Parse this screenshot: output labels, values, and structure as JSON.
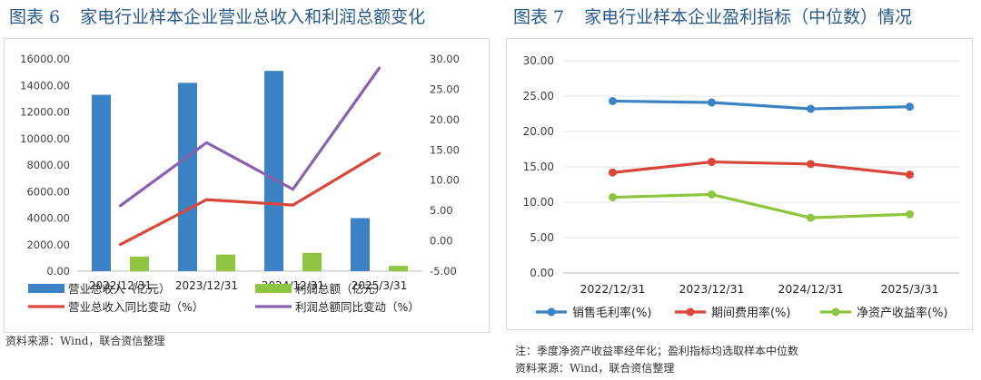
{
  "left": {
    "fig_num": "图表 6",
    "fig_title": "家电行业样本企业营业总收入和利润总额变化",
    "source": "资料来源：Wind，联合资信整理",
    "chart_data": {
      "type": "bar",
      "categories": [
        "2022/12/31",
        "2023/12/31",
        "2024/12/31",
        "2025/3/31"
      ],
      "y_ticks": [
        "16000.00",
        "14000.00",
        "12000.00",
        "10000.00",
        "8000.00",
        "6000.00",
        "4000.00",
        "2000.00",
        "0.00"
      ],
      "y2_ticks": [
        "30.00",
        "25.00",
        "20.00",
        "15.00",
        "10.00",
        "5.00",
        "0.00",
        "-5.00"
      ],
      "ylim": [
        0,
        16000
      ],
      "y2lim": [
        -5,
        30
      ],
      "series": [
        {
          "name": "营业总收入（亿元）",
          "kind": "bar",
          "axis": "left",
          "color": "#3b83c4",
          "values": [
            13300,
            14200,
            15100,
            4000
          ]
        },
        {
          "name": "利润总额（亿元）",
          "kind": "bar",
          "axis": "left",
          "color": "#8fc640",
          "values": [
            1100,
            1250,
            1380,
            400
          ]
        },
        {
          "name": "营业总收入同比变动（%）",
          "kind": "line",
          "axis": "right",
          "color": "#d9463a",
          "values": [
            -0.6,
            6.8,
            5.9,
            14.4
          ]
        },
        {
          "name": "利润总额同比变动（%）",
          "kind": "line",
          "axis": "right",
          "color": "#8a61b0",
          "values": [
            5.8,
            16.2,
            8.5,
            28.5
          ]
        }
      ]
    }
  },
  "right": {
    "fig_num": "图表 7",
    "fig_title": "家电行业样本企业盈利指标（中位数）情况",
    "note": "注：季度净资产收益率经年化；盈利指标均选取样本中位数",
    "source": "资料来源：Wind，联合资信整理",
    "chart_data": {
      "type": "line",
      "categories": [
        "2022/12/31",
        "2023/12/31",
        "2024/12/31",
        "2025/3/31"
      ],
      "y_ticks": [
        "30.00",
        "25.00",
        "20.00",
        "15.00",
        "10.00",
        "5.00",
        "0.00"
      ],
      "ylim": [
        0,
        30
      ],
      "series": [
        {
          "name": "销售毛利率(%)",
          "color": "#3b83c4",
          "values": [
            24.3,
            24.1,
            23.2,
            23.5
          ]
        },
        {
          "name": "期间费用率(%)",
          "color": "#d9463a",
          "values": [
            14.2,
            15.7,
            15.4,
            13.9
          ]
        },
        {
          "name": "净资产收益率(%)",
          "color": "#8fc640",
          "values": [
            10.7,
            11.1,
            7.8,
            8.3
          ]
        }
      ]
    }
  }
}
